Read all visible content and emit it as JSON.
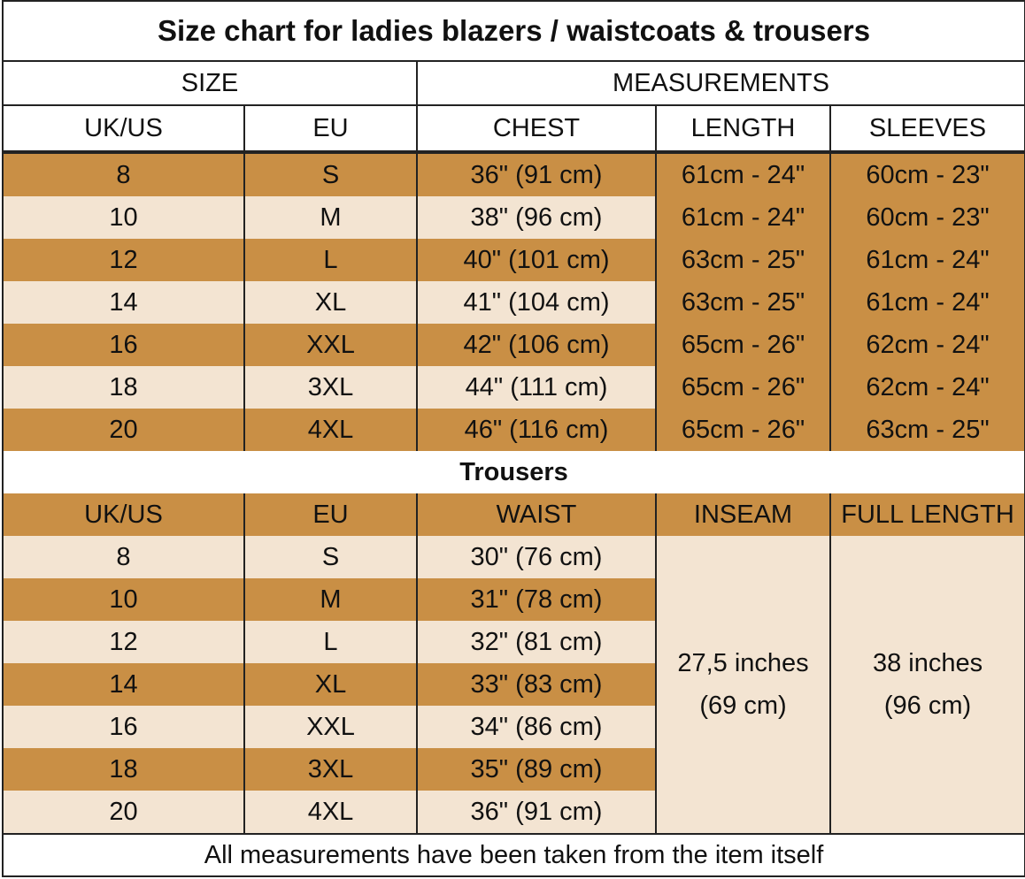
{
  "header": {
    "title": "Size chart for ladies blazers / waistcoats & trousers",
    "size": "SIZE",
    "measurements": "MEASUREMENTS"
  },
  "blazers": {
    "columns": [
      "UK/US",
      "EU",
      "CHEST",
      "LENGTH",
      "SLEEVES"
    ],
    "rows": [
      [
        "8",
        "S",
        "36\" (91 cm)",
        "61cm - 24\"",
        "60cm - 23\""
      ],
      [
        "10",
        "M",
        "38\" (96 cm)",
        "61cm - 24\"",
        "60cm - 23\""
      ],
      [
        "12",
        "L",
        "40\" (101 cm)",
        "63cm - 25\"",
        "61cm - 24\""
      ],
      [
        "14",
        "XL",
        "41\" (104 cm)",
        "63cm - 25\"",
        "61cm - 24\""
      ],
      [
        "16",
        "XXL",
        "42\" (106 cm)",
        "65cm - 26\"",
        "62cm - 24\""
      ],
      [
        "18",
        "3XL",
        "44\" (111 cm)",
        "65cm - 26\"",
        "62cm - 24\""
      ],
      [
        "20",
        "4XL",
        "46\" (116 cm)",
        "65cm - 26\"",
        "63cm - 25\""
      ]
    ]
  },
  "trousers": {
    "title": "Trousers",
    "columns": [
      "UK/US",
      "EU",
      "WAIST",
      "INSEAM",
      "FULL LENGTH"
    ],
    "rows": [
      [
        "8",
        "S",
        "30\" (76 cm)"
      ],
      [
        "10",
        "M",
        "31\" (78 cm)"
      ],
      [
        "12",
        "L",
        "32\" (81 cm)"
      ],
      [
        "14",
        "XL",
        "33\" (83 cm)"
      ],
      [
        "16",
        "XXL",
        "34\" (86 cm)"
      ],
      [
        "18",
        "3XL",
        "35\" (89 cm)"
      ],
      [
        "20",
        "4XL",
        "36\" (91 cm)"
      ]
    ],
    "inseam": [
      "27,5 inches",
      "(69 cm)"
    ],
    "full_length": [
      "38 inches",
      "(96 cm)"
    ]
  },
  "footer": "All measurements have been taken from the item itself"
}
